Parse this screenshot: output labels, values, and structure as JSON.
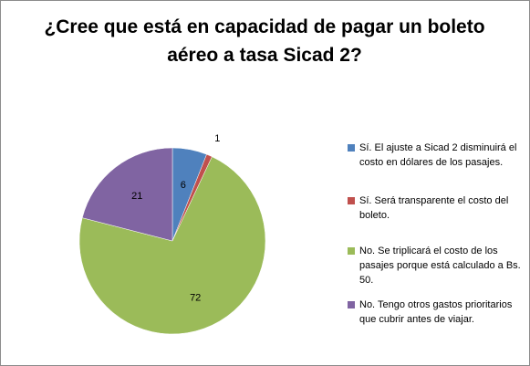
{
  "chart_data": {
    "type": "pie",
    "title": "¿Cree que está en capacidad de pagar un boleto aéreo a tasa Sicad 2?",
    "legend_position": "right",
    "categories": [
      "Sí. El ajuste a Sicad 2 disminuirá el costo en dólares de los pasajes.",
      "Sí. Será transparente el costo del boleto.",
      "No. Se triplicará el costo de los pasajes porque está calculado a Bs. 50.",
      "No. Tengo otros gastos prioritarios que cubrir antes de viajar."
    ],
    "values": [
      6,
      1,
      72,
      21
    ],
    "colors": [
      "#4f81bd",
      "#c0504d",
      "#9bbb59",
      "#8064a2"
    ]
  }
}
